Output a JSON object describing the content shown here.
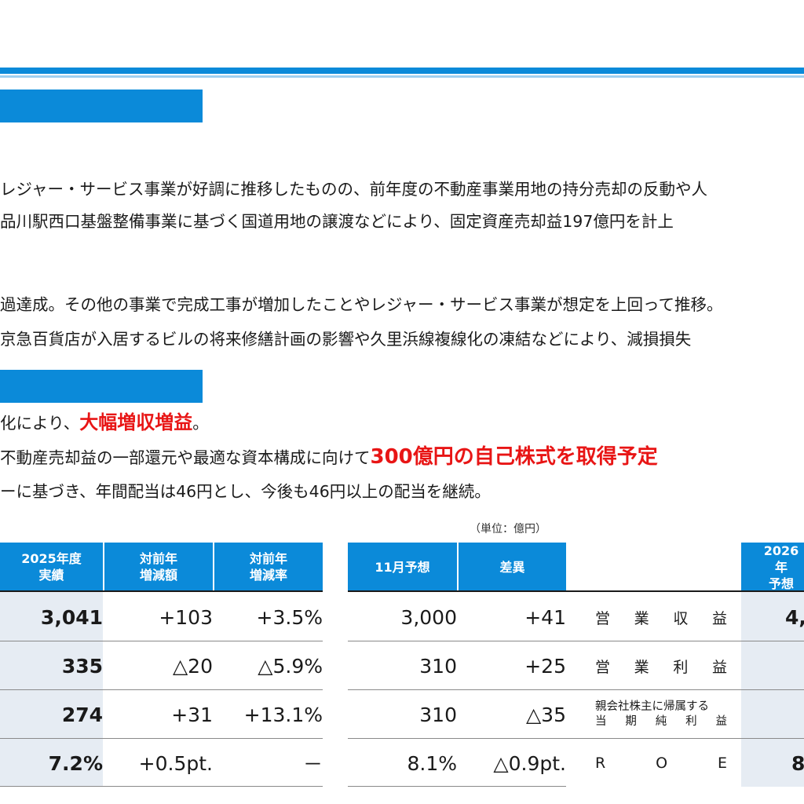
{
  "colors": {
    "accent": "#0b8ad9",
    "accent_light": "#9fd0f0",
    "highlight_red": "#e81515",
    "first_col_bg": "#e6ecf3"
  },
  "text": {
    "line1": "レジャー・サービス事業が好調に推移したものの、前年度の不動産事業用地の持分売却の反動や人",
    "line2": "品川駅西口基盤整備事業に基づく国道用地の譲渡などにより、固定資産売却益197億円を計上",
    "line3": "過達成。その他の事業で完成工事が増加したことやレジャー・サービス事業が想定を上回って推移。",
    "line4": "京急百貨店が入居するビルの将来修繕計画の影響や久里浜線複線化の凍結などにより、減損損失",
    "line5_pre": "化により、",
    "line5_highlight": "大幅増収増益",
    "line5_post": "。",
    "line6_pre": "不動産売却益の一部還元や最適な資本構成に向けて",
    "line6_highlight": "300億円の自己株式を取得予定",
    "line7": "ーに基づき、年間配当は46円とし、今後も46円以上の配当を継続。"
  },
  "table": {
    "unit_note": "（単位：億円）",
    "headers": {
      "actual": "2025年度\n実績",
      "yoy_amount": "対前年\n増減額",
      "yoy_rate": "対前年\n増減率",
      "nov_forecast": "11月予想",
      "difference": "差異",
      "next_forecast": "2026年\n予想"
    },
    "rows": [
      {
        "actual": "3,041",
        "yoy_amount": "+103",
        "yoy_rate": "+3.5%",
        "nov_forecast": "3,000",
        "difference": "+41",
        "label_chars": [
          "営",
          "業",
          "収",
          "益"
        ],
        "next_forecast": "4,"
      },
      {
        "actual": "335",
        "yoy_amount": "△20",
        "yoy_rate": "△5.9%",
        "nov_forecast": "310",
        "difference": "+25",
        "label_chars": [
          "営",
          "業",
          "利",
          "益"
        ],
        "next_forecast": ""
      },
      {
        "actual": "274",
        "yoy_amount": "+31",
        "yoy_rate": "+13.1%",
        "nov_forecast": "310",
        "difference": "△35",
        "label_line1": "親会社株主に帰属する",
        "label_line2_chars": [
          "当",
          "期",
          "純",
          "利",
          "益"
        ],
        "next_forecast": ""
      },
      {
        "actual": "7.2%",
        "yoy_amount": "+0.5pt.",
        "yoy_rate": "－",
        "nov_forecast": "8.1%",
        "difference": "△0.9pt.",
        "label_chars": [
          "R",
          "O",
          "E"
        ],
        "next_forecast": "8"
      }
    ]
  }
}
